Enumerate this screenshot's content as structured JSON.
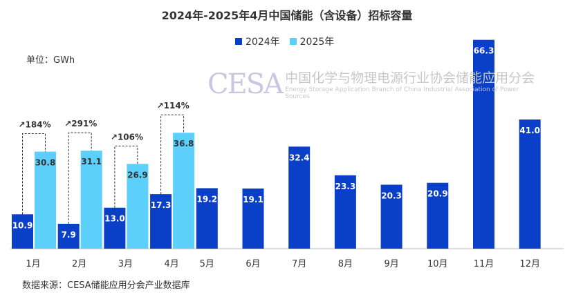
{
  "chart_data": {
    "type": "bar",
    "title": "2024年-2025年4月中国储能（含设备）招标容量",
    "unit_label": "单位：GWh",
    "source": "数据来源：CESA储能应用分会产业数据库",
    "categories": [
      "1月",
      "2月",
      "3月",
      "4月",
      "5月",
      "6月",
      "7月",
      "8月",
      "9月",
      "10月",
      "11月",
      "12月"
    ],
    "series": [
      {
        "name": "2024年",
        "color": "#0a3fc8",
        "values": [
          10.9,
          7.9,
          13.0,
          17.3,
          19.2,
          19.1,
          32.4,
          23.3,
          20.3,
          20.9,
          66.3,
          41.0
        ]
      },
      {
        "name": "2025年",
        "color": "#5ccffb",
        "values": [
          30.8,
          31.1,
          26.9,
          36.8,
          null,
          null,
          null,
          null,
          null,
          null,
          null,
          null
        ]
      }
    ],
    "growth_annotations": [
      "↗184%",
      "↗291%",
      "↗106%",
      "↗114%"
    ],
    "ylim": [
      0,
      70
    ],
    "grid": false,
    "legend_position": "top-center"
  },
  "watermark": {
    "logo": "CESA",
    "cn": "中国化学与物理电源行业协会储能应用分会",
    "en": "Energy Storage Application Branch of China Industrial Association of Power Sources"
  }
}
